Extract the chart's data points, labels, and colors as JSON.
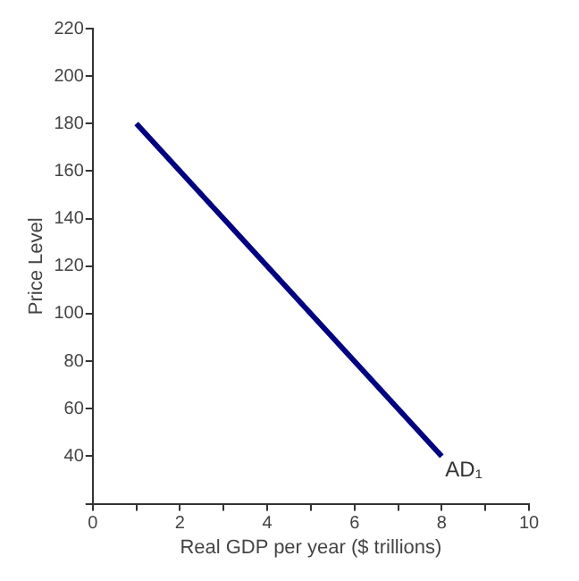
{
  "chart_data": {
    "type": "line",
    "xlabel": "Real GDP per year ($ trillions)",
    "ylabel": "Price Level",
    "x": [
      1,
      8
    ],
    "series": [
      {
        "name": "AD₁",
        "color": "#000080",
        "values": [
          180,
          40
        ]
      }
    ],
    "xlim": [
      0,
      10
    ],
    "xticks": [
      0,
      {
        "value": 1,
        "label": null
      },
      2,
      {
        "value": 3,
        "label": null
      },
      4,
      {
        "value": 5,
        "label": null
      },
      6,
      {
        "value": 7,
        "label": null
      },
      8,
      {
        "value": 9,
        "label": null
      },
      10
    ],
    "ylim": [
      20,
      220
    ],
    "yticks": [
      {
        "value": 20,
        "label": null
      },
      40,
      60,
      80,
      100,
      120,
      140,
      160,
      180,
      200,
      220
    ],
    "grid": false,
    "legend": false,
    "marker": "none",
    "line_style": "solid"
  }
}
